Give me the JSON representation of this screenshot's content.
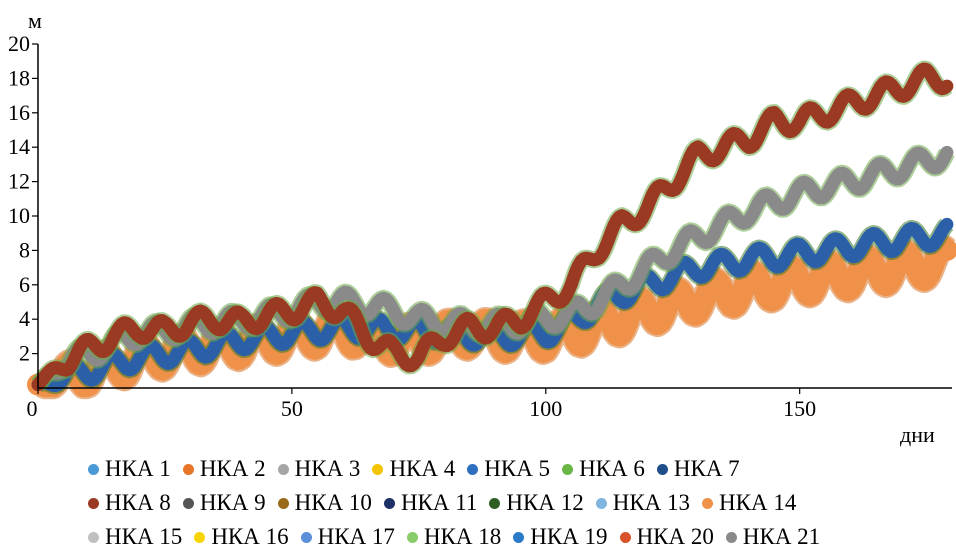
{
  "chart_data": {
    "type": "line",
    "ylabel": "м",
    "xlabel": "дни",
    "xlim": [
      0,
      180
    ],
    "ylim": [
      0,
      20
    ],
    "x_ticks": [
      "0",
      "50",
      "100",
      "150"
    ],
    "y_ticks": [
      "2",
      "4",
      "6",
      "8",
      "10",
      "12",
      "14",
      "16",
      "18",
      "20"
    ],
    "grid": false,
    "legend_position": "bottom",
    "groups": [
      {
        "color": "#9b3a22",
        "members": [
          "НКА 8",
          "НКА 20",
          "НКА 2"
        ],
        "x": [
          0,
          5,
          10,
          15,
          20,
          25,
          30,
          35,
          40,
          45,
          50,
          55,
          60,
          65,
          70,
          75,
          80,
          85,
          90,
          95,
          100,
          105,
          110,
          115,
          120,
          125,
          130,
          135,
          140,
          145,
          150,
          155,
          160,
          165,
          170,
          175,
          180
        ],
        "y": [
          0.2,
          1.5,
          2.3,
          3.0,
          3.5,
          3.3,
          3.8,
          4.0,
          3.8,
          4.2,
          4.5,
          5.0,
          4.5,
          3.0,
          2.0,
          1.8,
          3.0,
          3.5,
          3.5,
          4.0,
          5.0,
          6.0,
          8.0,
          9.5,
          10.5,
          12.0,
          13.5,
          14.0,
          14.5,
          15.5,
          15.5,
          16.0,
          16.5,
          17.0,
          17.5,
          18.0,
          18.0
        ]
      },
      {
        "color": "#8a8a8a",
        "members": [
          "НКА 3",
          "НКА 9",
          "НКА 15",
          "НКА 21"
        ],
        "x": [
          0,
          5,
          10,
          15,
          20,
          25,
          30,
          35,
          40,
          45,
          50,
          55,
          60,
          65,
          70,
          75,
          80,
          85,
          90,
          95,
          100,
          105,
          110,
          115,
          120,
          125,
          130,
          135,
          140,
          145,
          150,
          155,
          160,
          165,
          170,
          175,
          180
        ],
        "y": [
          0.2,
          1.5,
          2.0,
          2.6,
          3.2,
          3.3,
          3.6,
          3.8,
          3.9,
          4.2,
          4.5,
          5.0,
          5.0,
          4.8,
          4.5,
          4.0,
          3.8,
          3.7,
          3.7,
          3.8,
          4.0,
          4.3,
          5.0,
          6.0,
          7.0,
          8.0,
          8.8,
          9.5,
          10.3,
          10.8,
          11.3,
          11.7,
          12.0,
          12.4,
          12.8,
          13.2,
          13.7
        ]
      },
      {
        "color": "#2b5fa8",
        "members": [
          "НКА 5",
          "НКА 7",
          "НКА 11",
          "НКА 17",
          "НКА 19",
          "НКА 12"
        ],
        "x": [
          0,
          10,
          20,
          30,
          40,
          50,
          60,
          70,
          80,
          90,
          100,
          105,
          110,
          115,
          120,
          125,
          130,
          135,
          140,
          145,
          150,
          155,
          160,
          165,
          170,
          175,
          180
        ],
        "y": [
          0.2,
          1.0,
          1.8,
          2.2,
          2.8,
          3.2,
          3.5,
          3.4,
          3.2,
          3.0,
          3.2,
          3.8,
          4.8,
          5.5,
          6.0,
          6.5,
          7.0,
          7.2,
          7.5,
          7.6,
          7.8,
          8.0,
          8.2,
          8.4,
          8.6,
          8.8,
          9.0
        ]
      },
      {
        "color": "#f0914a",
        "members": [
          "НКА 14",
          "НКА 1",
          "НКА 4",
          "НКА 6",
          "НКА 10",
          "НКА 13",
          "НКА 16",
          "НКА 18"
        ],
        "x": [
          0,
          5,
          10,
          15,
          20,
          25,
          30,
          35,
          40,
          45,
          50,
          55,
          60,
          65,
          70,
          75,
          80,
          85,
          90,
          95,
          100,
          105,
          110,
          115,
          120,
          125,
          130,
          135,
          140,
          145,
          150,
          155,
          160,
          165,
          170,
          175,
          180
        ],
        "y": [
          0.2,
          0.5,
          1.0,
          1.3,
          1.7,
          2.0,
          2.2,
          2.4,
          2.6,
          2.8,
          3.0,
          3.2,
          3.4,
          3.0,
          2.8,
          2.8,
          3.0,
          3.2,
          3.0,
          3.0,
          3.0,
          3.2,
          3.6,
          4.0,
          4.5,
          4.8,
          5.2,
          5.5,
          5.8,
          6.0,
          6.2,
          6.4,
          6.6,
          6.8,
          7.0,
          7.2,
          7.3
        ]
      }
    ],
    "legend": [
      [
        {
          "label": "НКА 1",
          "color": "#4a9ad8"
        },
        {
          "label": "НКА 2",
          "color": "#e8762a"
        },
        {
          "label": "НКА 3",
          "color": "#a5a5a5"
        },
        {
          "label": "НКА 4",
          "color": "#f5c400"
        },
        {
          "label": "НКА 5",
          "color": "#2e6fc0"
        },
        {
          "label": "НКА 6",
          "color": "#6ab645"
        },
        {
          "label": "НКА 7",
          "color": "#1f4f8a"
        }
      ],
      [
        {
          "label": "НКА 8",
          "color": "#9b3a22"
        },
        {
          "label": "НКА 9",
          "color": "#555555"
        },
        {
          "label": "НКА 10",
          "color": "#9a6a1a"
        },
        {
          "label": "НКА 11",
          "color": "#1c2f66"
        },
        {
          "label": "НКА 12",
          "color": "#2f5e22"
        },
        {
          "label": "НКА 13",
          "color": "#7fb6e0"
        },
        {
          "label": "НКА 14",
          "color": "#f0914a"
        }
      ],
      [
        {
          "label": "НКА 15",
          "color": "#c0c0c0"
        },
        {
          "label": "НКА 16",
          "color": "#f7d400"
        },
        {
          "label": "НКА 17",
          "color": "#5b8fd8"
        },
        {
          "label": "НКА 18",
          "color": "#8acb6a"
        },
        {
          "label": "НКА 19",
          "color": "#2a7ac8"
        },
        {
          "label": "НКА 20",
          "color": "#d9532a"
        },
        {
          "label": "НКА 21",
          "color": "#8a8a8a"
        }
      ]
    ]
  }
}
